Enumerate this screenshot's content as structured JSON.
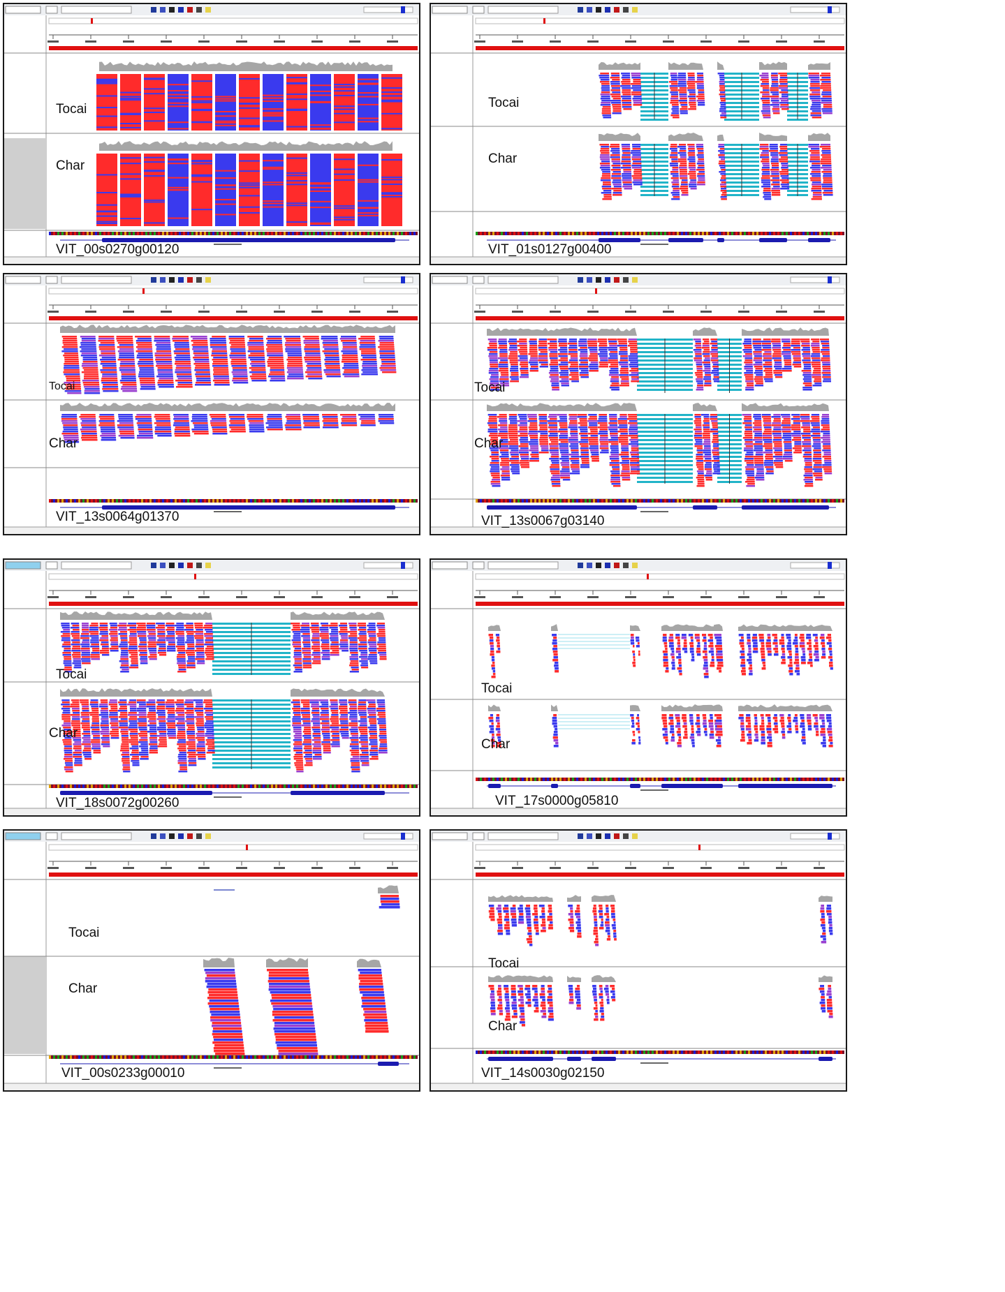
{
  "app": "IGV genome browser",
  "colors": {
    "forward_read": "#ff2b2b",
    "reverse_read": "#3a3aee",
    "mixed_read": "#9a3fd0",
    "split_junction": "#22b4c8",
    "coverage": "#a6a6a6",
    "gene_feature": "#1b1bb0",
    "ruler": "#e01010"
  },
  "panels": [
    {
      "sample_top": "Tocai",
      "sample_bottom": "Char",
      "gene_id": "VIT_00s0270g00120"
    },
    {
      "sample_top": "Tocai",
      "sample_bottom": "Char",
      "gene_id": "VIT_01s0127g00400"
    },
    {
      "sample_top": "Tocai",
      "sample_bottom": "Char",
      "gene_id": "VIT_13s0064g01370"
    },
    {
      "sample_top": "Tocai",
      "sample_bottom": "Char",
      "gene_id": "VIT_13s0067g03140"
    },
    {
      "sample_top": "Tocai",
      "sample_bottom": "Char",
      "gene_id": "VIT_18s0072g00260"
    },
    {
      "sample_top": "Tocai",
      "sample_bottom": "Char",
      "gene_id": "VIT_17s0000g05810"
    },
    {
      "sample_top": "Tocai",
      "sample_bottom": "Char",
      "gene_id": "VIT_00s0233g00010"
    },
    {
      "sample_top": "Tocai",
      "sample_bottom": "Char",
      "gene_id": "VIT_14s0030g02150"
    }
  ]
}
